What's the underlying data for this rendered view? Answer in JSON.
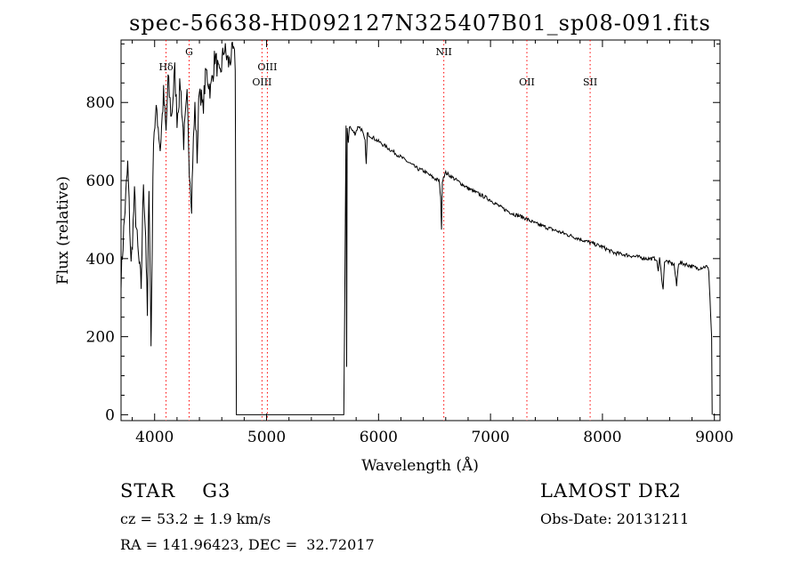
{
  "chart_data": {
    "type": "line",
    "title": "spec-56638-HD092127N325407B01_sp08-091.fits",
    "xlabel": "Wavelength (Å)",
    "ylabel": "Flux (relative)",
    "xlim": [
      3700,
      9050
    ],
    "ylim": [
      -15,
      960
    ],
    "x_ticks": [
      4000,
      5000,
      6000,
      7000,
      8000,
      9000
    ],
    "y_ticks": [
      0,
      200,
      400,
      600,
      800
    ],
    "grid": false,
    "line_color": "#000000",
    "series": [
      {
        "x": [
          3700,
          3730,
          3760,
          3790,
          3820,
          3850,
          3880,
          3900,
          3920,
          3935,
          3950,
          3968,
          3990,
          4020,
          4050,
          4080,
          4102,
          4120,
          4150,
          4180,
          4200,
          4230,
          4260,
          4290,
          4310,
          4330,
          4340,
          4360,
          4380,
          4400,
          4430,
          4460,
          4500,
          4540,
          4580,
          4620,
          4660,
          4700,
          4720,
          4725,
          4730,
          5690,
          5710,
          5715,
          5720,
          5730,
          5740,
          5760,
          5790,
          5820,
          5850,
          5880,
          5890,
          5900,
          5950,
          6000,
          6050,
          6100,
          6150,
          6200,
          6250,
          6300,
          6350,
          6400,
          6450,
          6500,
          6540,
          6555,
          6563,
          6570,
          6580,
          6600,
          6650,
          6700,
          6800,
          6900,
          7000,
          7100,
          7200,
          7300,
          7400,
          7500,
          7600,
          7700,
          7800,
          7900,
          8000,
          8100,
          8200,
          8300,
          8400,
          8480,
          8498,
          8510,
          8542,
          8555,
          8600,
          8640,
          8662,
          8680,
          8750,
          8850,
          8930,
          8950,
          8960,
          8975,
          8980
        ],
        "values": [
          350,
          500,
          640,
          380,
          560,
          420,
          330,
          600,
          460,
          250,
          600,
          175,
          720,
          780,
          680,
          820,
          720,
          860,
          760,
          880,
          760,
          850,
          700,
          810,
          640,
          545,
          650,
          790,
          660,
          850,
          780,
          880,
          830,
          920,
          860,
          940,
          900,
          930,
          900,
          500,
          0,
          0,
          740,
          120,
          730,
          700,
          740,
          730,
          720,
          740,
          730,
          700,
          640,
          720,
          710,
          700,
          690,
          680,
          670,
          660,
          650,
          640,
          630,
          625,
          615,
          605,
          600,
          560,
          470,
          600,
          610,
          620,
          610,
          600,
          580,
          565,
          550,
          530,
          515,
          505,
          490,
          480,
          470,
          460,
          450,
          440,
          430,
          415,
          410,
          405,
          400,
          400,
          370,
          400,
          320,
          395,
          390,
          385,
          330,
          390,
          385,
          375,
          380,
          370,
          300,
          200,
          0
        ]
      }
    ],
    "line_markers": [
      {
        "label": "Hδ",
        "x": 4102,
        "row": 1
      },
      {
        "label": "G",
        "x": 4308,
        "row": 0
      },
      {
        "label": "OIII",
        "x": 4959,
        "row": 2
      },
      {
        "label": "OIII",
        "x": 5007,
        "row": 1
      },
      {
        "label": "NII",
        "x": 6583,
        "row": 0
      },
      {
        "label": "OII",
        "x": 7325,
        "row": 2
      },
      {
        "label": "SII",
        "x": 7890,
        "row": 2
      }
    ],
    "marker_color": "#ff0000"
  },
  "info": {
    "class": "STAR",
    "subclass": "G3",
    "survey": "LAMOST DR2",
    "cz": "cz = 53.2 ± 1.9 km/s",
    "obs_date": "Obs-Date: 20131211",
    "radec": "RA = 141.96423, DEC =  32.72017"
  }
}
